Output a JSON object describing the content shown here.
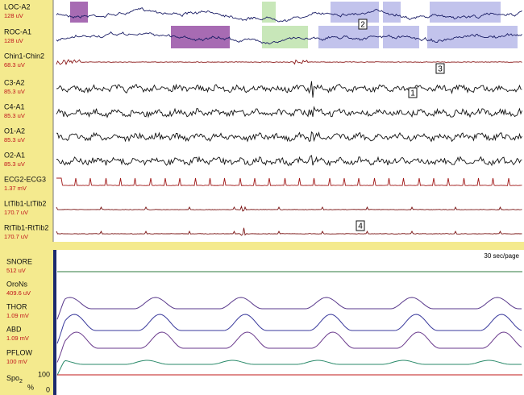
{
  "top_channels": [
    {
      "name": "LOC-A2",
      "scale": "128 uV"
    },
    {
      "name": "ROC-A1",
      "scale": "128 uV"
    },
    {
      "name": "Chin1-Chin2",
      "scale": "68.3 uV"
    },
    {
      "name": "C3-A2",
      "scale": "85.3 uV"
    },
    {
      "name": "C4-A1",
      "scale": "85.3 uV"
    },
    {
      "name": "O1-A2",
      "scale": "85.3 uV"
    },
    {
      "name": "O2-A1",
      "scale": "85.3 uV"
    },
    {
      "name": "ECG2-ECG3",
      "scale": "1.37 mV"
    },
    {
      "name": "LtTib1-LtTib2",
      "scale": "170.7 uV"
    },
    {
      "name": "RtTib1-RtTib2",
      "scale": "170.7 uV"
    }
  ],
  "bottom_channels": [
    {
      "name": "SNORE",
      "scale": "512 uV"
    },
    {
      "name": "OroNs",
      "scale": "409.6 uV"
    },
    {
      "name": "THOR",
      "scale": "1.09 mV"
    },
    {
      "name": "ABD",
      "scale": "1.09 mV"
    },
    {
      "name": "PFLOW",
      "scale": "100 mV"
    }
  ],
  "spo2": {
    "label": "Spo",
    "subscript": "2",
    "unit": "%",
    "top_label": "100",
    "bottom_label": "0"
  },
  "page_duration": "30 sec/page",
  "markers": [
    "1",
    "2",
    "3",
    "4"
  ]
}
